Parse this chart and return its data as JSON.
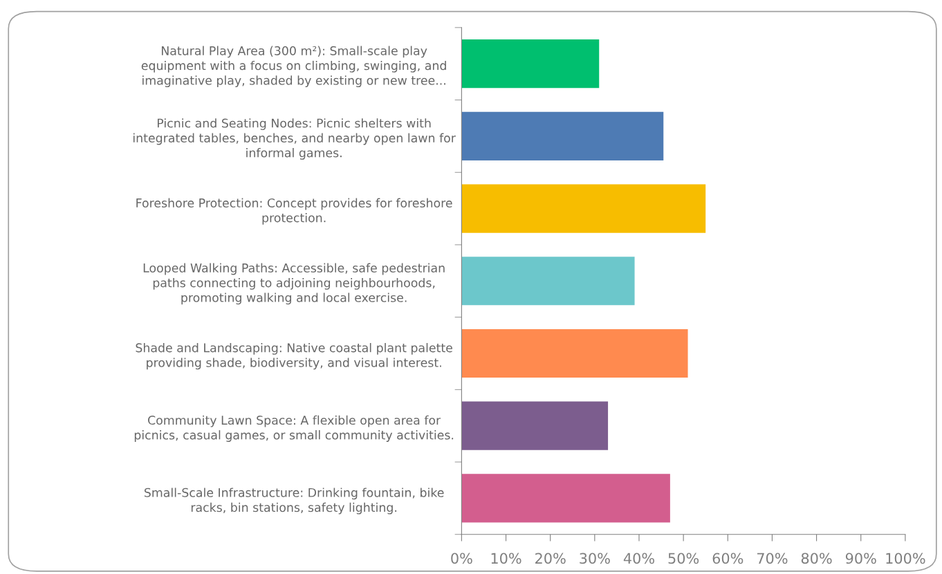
{
  "chart_data": {
    "type": "bar",
    "orientation": "horizontal",
    "categories": [
      "Natural Play Area (300 m²): Small-scale play\nequipment with a focus on climbing, swinging, and\nimaginative play, shaded by existing or new tree...",
      "Picnic and Seating Nodes: Picnic shelters with\nintegrated tables, benches, and nearby open lawn for\ninformal games.",
      "Foreshore Protection: Concept provides for foreshore\nprotection.",
      "Looped Walking Paths: Accessible, safe pedestrian\npaths connecting to adjoining neighbourhoods,\npromoting walking and local exercise.",
      "Shade and Landscaping: Native coastal plant palette\nproviding shade, biodiversity, and visual interest.",
      "Community Lawn Space: A flexible open area for\npicnics, casual games, or small community activities.",
      "Small-Scale Infrastructure: Drinking fountain, bike\nracks, bin stations, safety lighting."
    ],
    "values": [
      31,
      45.5,
      55,
      39,
      51,
      33,
      47
    ],
    "colors": [
      "#00bf6f",
      "#4e7bb4",
      "#f7bd00",
      "#6cc7cb",
      "#ff8a4f",
      "#7c5d8e",
      "#d35e8e"
    ],
    "xlim": [
      0,
      100
    ],
    "xticks": [
      {
        "value": 0,
        "label": "0%"
      },
      {
        "value": 10,
        "label": "10%"
      },
      {
        "value": 20,
        "label": "20%"
      },
      {
        "value": 30,
        "label": "30%"
      },
      {
        "value": 40,
        "label": "40%"
      },
      {
        "value": 50,
        "label": "50%"
      },
      {
        "value": 60,
        "label": "60%"
      },
      {
        "value": 70,
        "label": "70%"
      },
      {
        "value": 80,
        "label": "80%"
      },
      {
        "value": 90,
        "label": "90%"
      },
      {
        "value": 100,
        "label": "100%"
      }
    ],
    "grid": false,
    "legend": false
  }
}
